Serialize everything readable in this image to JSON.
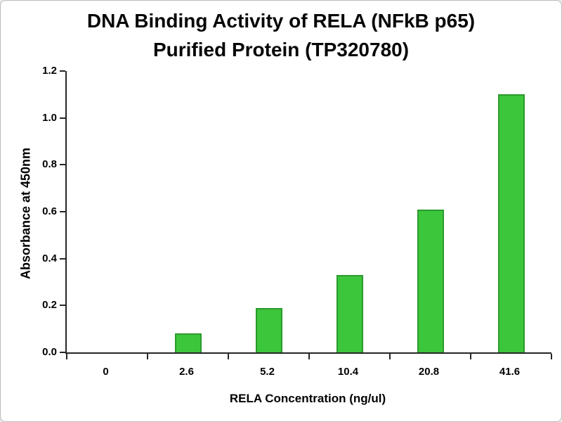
{
  "chart_data": {
    "type": "bar",
    "title": "DNA Binding Activity of RELA (NFkB p65) Purified Protein (TP320780)",
    "title_line1": "DNA Binding Activity of RELA (NFkB p65)",
    "title_line2": "Purified Protein (TP320780)",
    "xlabel": "RELA Concentration (ng/ul)",
    "ylabel": "Absorbance at 450nm",
    "categories": [
      "0",
      "2.6",
      "5.2",
      "10.4",
      "20.8",
      "41.6"
    ],
    "values": [
      0,
      0.08,
      0.19,
      0.33,
      0.61,
      1.1
    ],
    "ylim": [
      0,
      1.2
    ],
    "ytick_step": 0.2,
    "ytick_labels": [
      "0.0",
      "0.2",
      "0.4",
      "0.6",
      "0.8",
      "1.0",
      "1.2"
    ],
    "bar_fill": "#3cc63c",
    "bar_border": "#2b9a2b",
    "axis_color": "#262626",
    "grid": false,
    "legend": "none"
  }
}
